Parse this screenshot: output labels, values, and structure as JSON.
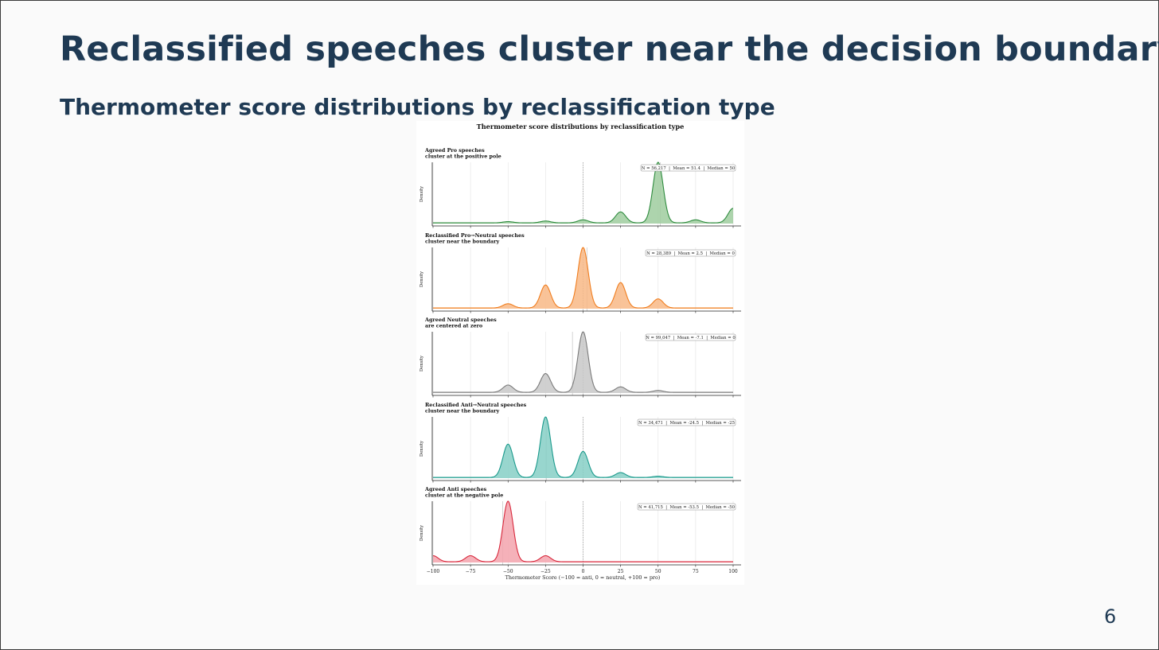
{
  "slide": {
    "title": "Reclassified speeches cluster near the decision boundary",
    "subtitle": "Thermometer score distributions by reclassification type",
    "page_number": "6"
  },
  "colors": {
    "title_text": "#1f3a54",
    "pro": "#2e8b3e",
    "pro_fill": "#9fcc9f",
    "reclass_pro": "#f07d1e",
    "reclass_pro_fill": "#f8b886",
    "neutral": "#7a7a7a",
    "neutral_fill": "#c8c8c8",
    "reclass_anti": "#1a9a8c",
    "reclass_anti_fill": "#86cfc6",
    "anti": "#d8283c",
    "anti_fill": "#f3a3ad"
  },
  "chart_data": {
    "type": "area",
    "title": "Thermometer score distributions by reclassification type",
    "xlabel": "Thermometer Score (−100 = anti, 0 = neutral, +100 = pro)",
    "ylabel": "Density",
    "xlim": [
      -100,
      100
    ],
    "x_ticks": [
      -100,
      -75,
      -50,
      -25,
      0,
      25,
      50,
      75,
      100
    ],
    "x_tick_labels": [
      "−100",
      "−75",
      "−50",
      "−25",
      "0",
      "25",
      "50",
      "75",
      "100"
    ],
    "grid": true,
    "reference_line_x": 0,
    "panels": [
      {
        "name": "Agreed Pro",
        "title_lines": [
          "Agreed Pro speeches",
          "cluster at the positive pole"
        ],
        "stats": "N = 56,217  |  Mean = 51.4  |  Median = 50",
        "mean": 51.4,
        "median": 50,
        "color_key": "pro",
        "peaks": [
          {
            "x": -50,
            "density": 0.02
          },
          {
            "x": -25,
            "density": 0.03
          },
          {
            "x": 0,
            "density": 0.05
          },
          {
            "x": 25,
            "density": 0.18
          },
          {
            "x": 50,
            "density": 1.0
          },
          {
            "x": 75,
            "density": 0.05
          },
          {
            "x": 100,
            "density": 0.24
          }
        ]
      },
      {
        "name": "Reclassified Pro→Neutral",
        "title_lines": [
          "Reclassified Pro→Neutral speeches",
          "cluster near the boundary"
        ],
        "stats": "N = 28,389  |  Mean = 2.5  |  Median = 0",
        "mean": 2.5,
        "median": 0,
        "color_key": "reclass_pro",
        "peaks": [
          {
            "x": -50,
            "density": 0.07
          },
          {
            "x": -25,
            "density": 0.38
          },
          {
            "x": 0,
            "density": 1.0
          },
          {
            "x": 25,
            "density": 0.42
          },
          {
            "x": 50,
            "density": 0.15
          }
        ]
      },
      {
        "name": "Agreed Neutral",
        "title_lines": [
          "Agreed Neutral speeches",
          "are centered at zero"
        ],
        "stats": "N = 99,047  |  Mean = -7.1  |  Median = 0",
        "mean": -7.1,
        "median": 0,
        "color_key": "neutral",
        "peaks": [
          {
            "x": -50,
            "density": 0.12
          },
          {
            "x": -25,
            "density": 0.31
          },
          {
            "x": 0,
            "density": 1.0
          },
          {
            "x": 25,
            "density": 0.09
          },
          {
            "x": 50,
            "density": 0.03
          }
        ]
      },
      {
        "name": "Reclassified Anti→Neutral",
        "title_lines": [
          "Reclassified Anti→Neutral speeches",
          "cluster near the boundary"
        ],
        "stats": "N = 34,471  |  Mean = -24.5  |  Median = -25",
        "mean": -24.5,
        "median": -25,
        "color_key": "reclass_anti",
        "peaks": [
          {
            "x": -50,
            "density": 0.55
          },
          {
            "x": -25,
            "density": 1.0
          },
          {
            "x": 0,
            "density": 0.43
          },
          {
            "x": 25,
            "density": 0.08
          },
          {
            "x": 50,
            "density": 0.02
          }
        ]
      },
      {
        "name": "Agreed Anti",
        "title_lines": [
          "Agreed Anti speeches",
          "cluster at the negative pole"
        ],
        "stats": "N = 41,715  |  Mean = -53.5  |  Median = -50",
        "mean": -53.5,
        "median": -50,
        "color_key": "anti",
        "peaks": [
          {
            "x": -100,
            "density": 0.1
          },
          {
            "x": -75,
            "density": 0.1
          },
          {
            "x": -50,
            "density": 1.0
          },
          {
            "x": -25,
            "density": 0.1
          }
        ]
      }
    ]
  }
}
